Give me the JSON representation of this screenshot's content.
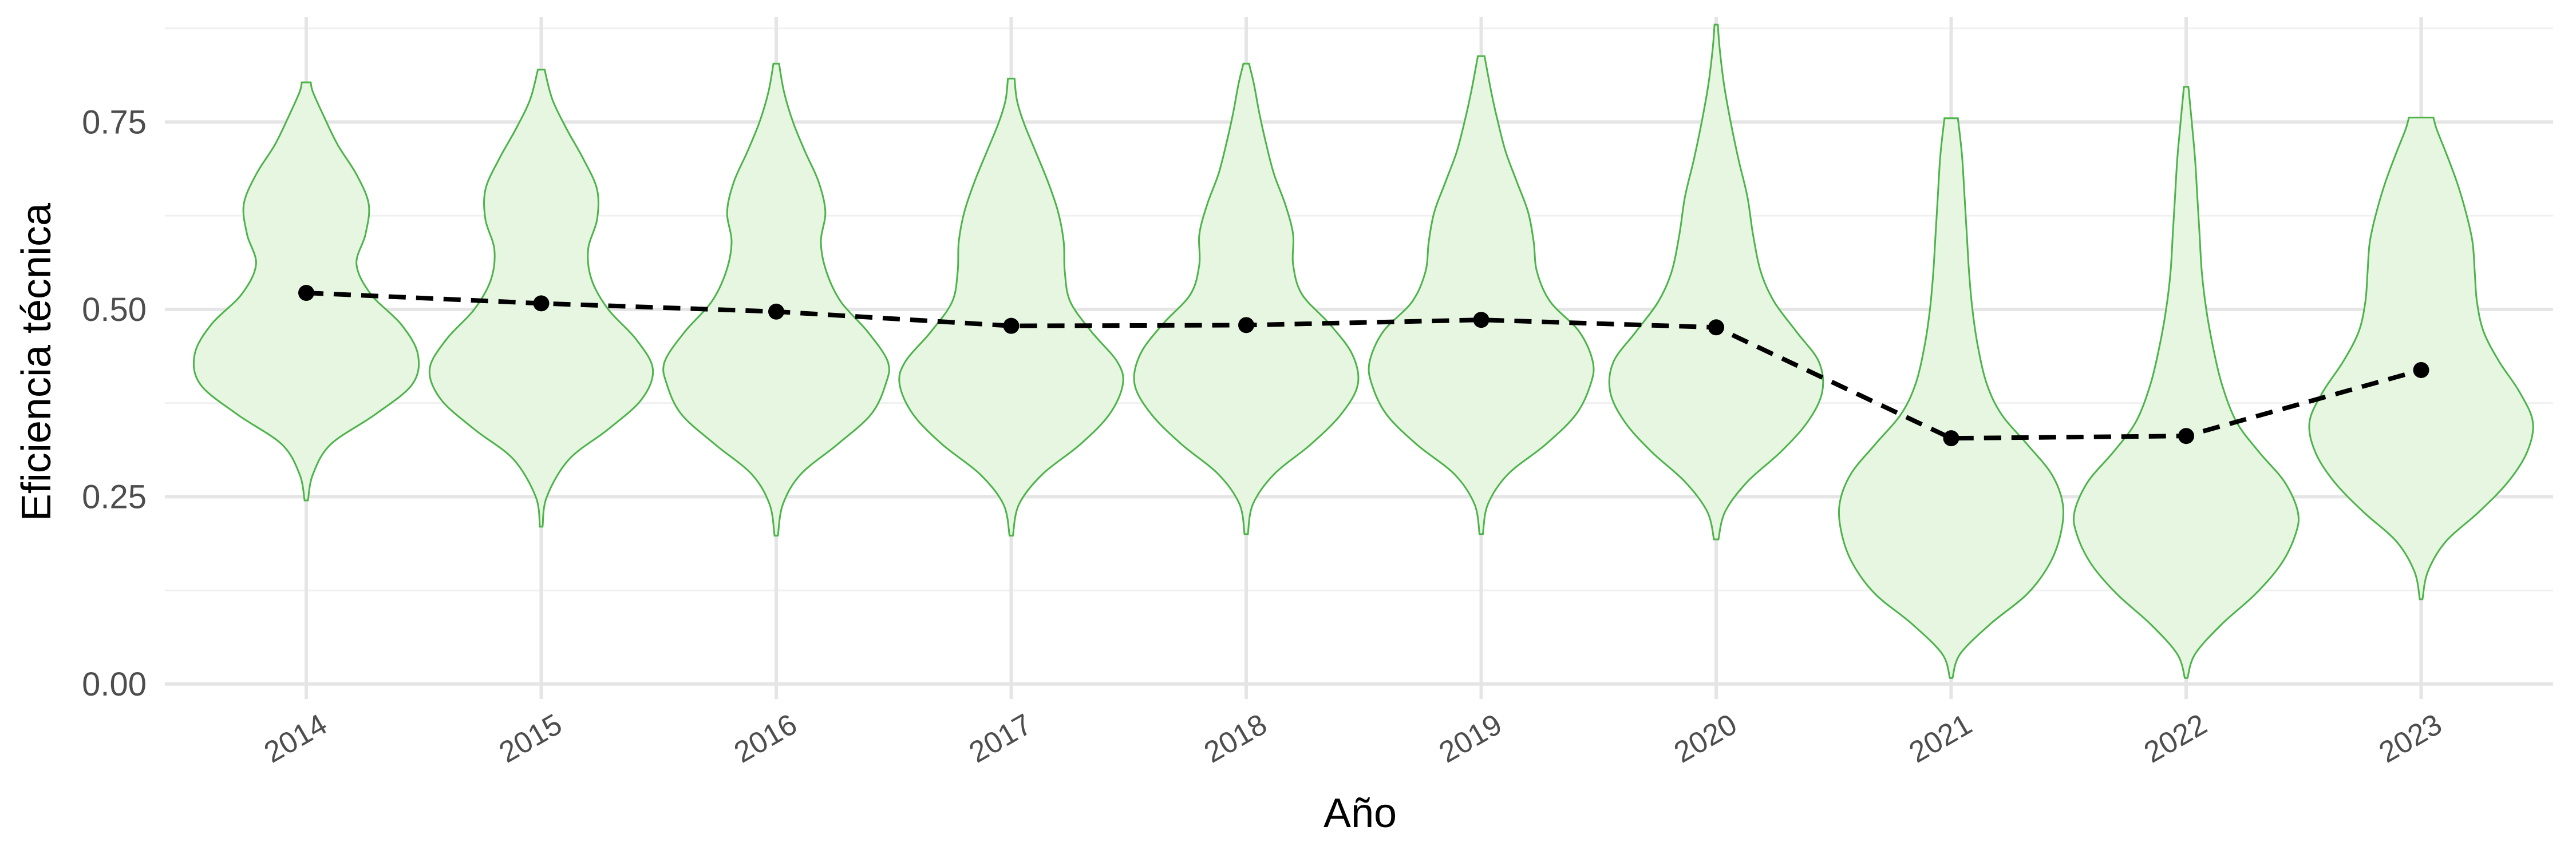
{
  "chart_data": {
    "type": "violin",
    "title": "",
    "xlabel": "Año",
    "ylabel": "Eficiencia técnica",
    "ylim": [
      -0.02,
      0.89
    ],
    "yticks": [
      0.0,
      0.25,
      0.5,
      0.75
    ],
    "ytick_labels": [
      "0.00",
      "0.25",
      "0.50",
      "0.75"
    ],
    "grid": true,
    "legend": "none",
    "categories": [
      "2014",
      "2015",
      "2016",
      "2017",
      "2018",
      "2019",
      "2020",
      "2021",
      "2022",
      "2023"
    ],
    "violins": [
      {
        "year": "2014",
        "min": 0.245,
        "max": 0.803,
        "profile": [
          [
            0.245,
            0.015
          ],
          [
            0.28,
            0.06
          ],
          [
            0.32,
            0.22
          ],
          [
            0.36,
            0.62
          ],
          [
            0.4,
            0.95
          ],
          [
            0.44,
            1.0
          ],
          [
            0.48,
            0.85
          ],
          [
            0.52,
            0.58
          ],
          [
            0.56,
            0.45
          ],
          [
            0.6,
            0.53
          ],
          [
            0.64,
            0.56
          ],
          [
            0.68,
            0.45
          ],
          [
            0.72,
            0.28
          ],
          [
            0.76,
            0.15
          ],
          [
            0.79,
            0.06
          ],
          [
            0.803,
            0.04
          ]
        ]
      },
      {
        "year": "2015",
        "min": 0.21,
        "max": 0.82,
        "profile": [
          [
            0.21,
            0.012
          ],
          [
            0.25,
            0.05
          ],
          [
            0.3,
            0.25
          ],
          [
            0.34,
            0.6
          ],
          [
            0.38,
            0.9
          ],
          [
            0.42,
            1.0
          ],
          [
            0.46,
            0.85
          ],
          [
            0.5,
            0.6
          ],
          [
            0.54,
            0.45
          ],
          [
            0.58,
            0.42
          ],
          [
            0.62,
            0.5
          ],
          [
            0.66,
            0.5
          ],
          [
            0.7,
            0.38
          ],
          [
            0.74,
            0.23
          ],
          [
            0.78,
            0.1
          ],
          [
            0.82,
            0.03
          ]
        ]
      },
      {
        "year": "2016",
        "min": 0.198,
        "max": 0.828,
        "profile": [
          [
            0.198,
            0.015
          ],
          [
            0.24,
            0.06
          ],
          [
            0.28,
            0.22
          ],
          [
            0.32,
            0.55
          ],
          [
            0.36,
            0.85
          ],
          [
            0.4,
            0.98
          ],
          [
            0.43,
            1.0
          ],
          [
            0.47,
            0.82
          ],
          [
            0.51,
            0.58
          ],
          [
            0.55,
            0.45
          ],
          [
            0.59,
            0.4
          ],
          [
            0.63,
            0.44
          ],
          [
            0.67,
            0.38
          ],
          [
            0.71,
            0.26
          ],
          [
            0.75,
            0.15
          ],
          [
            0.79,
            0.07
          ],
          [
            0.828,
            0.025
          ]
        ]
      },
      {
        "year": "2017",
        "min": 0.198,
        "max": 0.808,
        "profile": [
          [
            0.198,
            0.015
          ],
          [
            0.24,
            0.07
          ],
          [
            0.28,
            0.28
          ],
          [
            0.32,
            0.62
          ],
          [
            0.36,
            0.88
          ],
          [
            0.4,
            1.0
          ],
          [
            0.43,
            0.95
          ],
          [
            0.47,
            0.72
          ],
          [
            0.51,
            0.53
          ],
          [
            0.55,
            0.48
          ],
          [
            0.59,
            0.47
          ],
          [
            0.63,
            0.42
          ],
          [
            0.67,
            0.33
          ],
          [
            0.71,
            0.22
          ],
          [
            0.75,
            0.11
          ],
          [
            0.78,
            0.05
          ],
          [
            0.808,
            0.03
          ]
        ]
      },
      {
        "year": "2018",
        "min": 0.2,
        "max": 0.828,
        "profile": [
          [
            0.2,
            0.015
          ],
          [
            0.24,
            0.06
          ],
          [
            0.28,
            0.25
          ],
          [
            0.32,
            0.58
          ],
          [
            0.36,
            0.85
          ],
          [
            0.4,
            1.0
          ],
          [
            0.44,
            0.95
          ],
          [
            0.48,
            0.75
          ],
          [
            0.52,
            0.5
          ],
          [
            0.56,
            0.42
          ],
          [
            0.6,
            0.42
          ],
          [
            0.64,
            0.35
          ],
          [
            0.68,
            0.25
          ],
          [
            0.72,
            0.18
          ],
          [
            0.76,
            0.12
          ],
          [
            0.8,
            0.07
          ],
          [
            0.828,
            0.025
          ]
        ]
      },
      {
        "year": "2019",
        "min": 0.2,
        "max": 0.838,
        "profile": [
          [
            0.2,
            0.015
          ],
          [
            0.24,
            0.06
          ],
          [
            0.28,
            0.24
          ],
          [
            0.32,
            0.58
          ],
          [
            0.36,
            0.85
          ],
          [
            0.4,
            0.98
          ],
          [
            0.43,
            1.0
          ],
          [
            0.47,
            0.88
          ],
          [
            0.51,
            0.62
          ],
          [
            0.55,
            0.5
          ],
          [
            0.59,
            0.47
          ],
          [
            0.63,
            0.42
          ],
          [
            0.67,
            0.32
          ],
          [
            0.71,
            0.22
          ],
          [
            0.75,
            0.15
          ],
          [
            0.79,
            0.09
          ],
          [
            0.838,
            0.03
          ]
        ]
      },
      {
        "year": "2020",
        "min": 0.193,
        "max": 0.88,
        "profile": [
          [
            0.193,
            0.02
          ],
          [
            0.23,
            0.08
          ],
          [
            0.27,
            0.28
          ],
          [
            0.31,
            0.58
          ],
          [
            0.35,
            0.82
          ],
          [
            0.39,
            0.95
          ],
          [
            0.43,
            0.92
          ],
          [
            0.47,
            0.72
          ],
          [
            0.51,
            0.52
          ],
          [
            0.55,
            0.4
          ],
          [
            0.6,
            0.33
          ],
          [
            0.65,
            0.28
          ],
          [
            0.7,
            0.2
          ],
          [
            0.75,
            0.13
          ],
          [
            0.8,
            0.07
          ],
          [
            0.85,
            0.03
          ],
          [
            0.88,
            0.015
          ]
        ]
      },
      {
        "year": "2021",
        "min": 0.008,
        "max": 0.755,
        "profile": [
          [
            0.008,
            0.012
          ],
          [
            0.04,
            0.08
          ],
          [
            0.08,
            0.35
          ],
          [
            0.12,
            0.68
          ],
          [
            0.16,
            0.88
          ],
          [
            0.2,
            0.98
          ],
          [
            0.24,
            1.0
          ],
          [
            0.28,
            0.9
          ],
          [
            0.32,
            0.68
          ],
          [
            0.36,
            0.45
          ],
          [
            0.4,
            0.32
          ],
          [
            0.45,
            0.24
          ],
          [
            0.5,
            0.19
          ],
          [
            0.55,
            0.16
          ],
          [
            0.6,
            0.14
          ],
          [
            0.65,
            0.12
          ],
          [
            0.7,
            0.1
          ],
          [
            0.73,
            0.08
          ],
          [
            0.755,
            0.06
          ]
        ]
      },
      {
        "year": "2022",
        "min": 0.008,
        "max": 0.797,
        "profile": [
          [
            0.008,
            0.012
          ],
          [
            0.04,
            0.08
          ],
          [
            0.08,
            0.32
          ],
          [
            0.12,
            0.62
          ],
          [
            0.16,
            0.85
          ],
          [
            0.2,
            0.98
          ],
          [
            0.23,
            1.0
          ],
          [
            0.27,
            0.88
          ],
          [
            0.31,
            0.65
          ],
          [
            0.35,
            0.45
          ],
          [
            0.4,
            0.32
          ],
          [
            0.45,
            0.24
          ],
          [
            0.5,
            0.18
          ],
          [
            0.55,
            0.14
          ],
          [
            0.6,
            0.12
          ],
          [
            0.65,
            0.1
          ],
          [
            0.7,
            0.08
          ],
          [
            0.75,
            0.05
          ],
          [
            0.797,
            0.02
          ]
        ]
      },
      {
        "year": "2023",
        "min": 0.113,
        "max": 0.756,
        "profile": [
          [
            0.113,
            0.012
          ],
          [
            0.15,
            0.06
          ],
          [
            0.19,
            0.22
          ],
          [
            0.23,
            0.52
          ],
          [
            0.27,
            0.78
          ],
          [
            0.31,
            0.95
          ],
          [
            0.35,
            1.0
          ],
          [
            0.39,
            0.88
          ],
          [
            0.43,
            0.7
          ],
          [
            0.47,
            0.56
          ],
          [
            0.51,
            0.5
          ],
          [
            0.55,
            0.48
          ],
          [
            0.59,
            0.46
          ],
          [
            0.63,
            0.4
          ],
          [
            0.67,
            0.32
          ],
          [
            0.71,
            0.22
          ],
          [
            0.74,
            0.14
          ],
          [
            0.756,
            0.11
          ]
        ]
      }
    ],
    "series": [
      {
        "values": [
          0.522,
          0.508,
          0.497,
          0.478,
          0.479,
          0.486,
          0.476,
          0.328,
          0.331,
          0.419
        ]
      }
    ],
    "colors": {
      "violin_fill": "#e6f6e1",
      "violin_stroke": "#4db34a",
      "line": "#000000",
      "point": "#000000"
    }
  }
}
